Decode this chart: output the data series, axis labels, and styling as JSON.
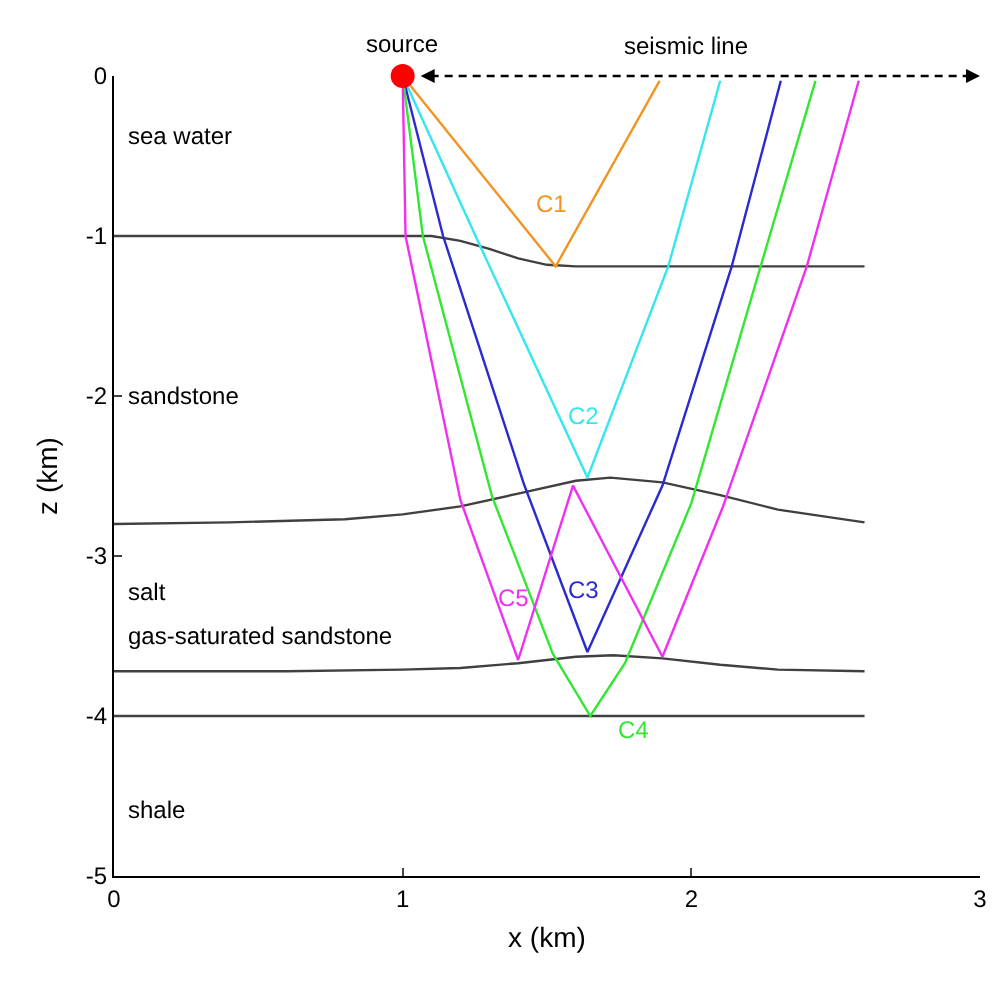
{
  "chart_data": {
    "type": "line",
    "xlabel": "x (km)",
    "ylabel": "z (km)",
    "xlim": [
      0,
      3
    ],
    "xticks": [
      0,
      1,
      2,
      3
    ],
    "ylim": [
      -5,
      0
    ],
    "yticks": [
      0,
      -1,
      -2,
      -3,
      -4,
      -5
    ],
    "grid": false,
    "legend": false,
    "marker": "none",
    "line_style": "solid",
    "series": [
      {
        "color": "#404040",
        "x": [
          0,
          1.0,
          1.1,
          1.2,
          1.3,
          1.4,
          1.5,
          1.6,
          2.6
        ],
        "values": [
          -1.0,
          -1.0,
          -1.0,
          -1.03,
          -1.08,
          -1.14,
          -1.18,
          -1.19,
          -1.19
        ]
      },
      {
        "color": "#404040",
        "x": [
          0,
          0.4,
          0.8,
          1.0,
          1.2,
          1.4,
          1.6,
          1.72,
          1.9,
          2.1,
          2.3,
          2.6
        ],
        "values": [
          -2.8,
          -2.79,
          -2.77,
          -2.74,
          -2.69,
          -2.61,
          -2.53,
          -2.51,
          -2.54,
          -2.62,
          -2.71,
          -2.79
        ]
      },
      {
        "color": "#404040",
        "x": [
          0,
          0.6,
          1.0,
          1.2,
          1.4,
          1.6,
          1.73,
          1.9,
          2.1,
          2.3,
          2.6
        ],
        "values": [
          -3.72,
          -3.72,
          -3.71,
          -3.7,
          -3.67,
          -3.63,
          -3.62,
          -3.64,
          -3.68,
          -3.71,
          -3.72
        ]
      },
      {
        "color": "#404040",
        "x": [
          0,
          2.6
        ],
        "values": [
          -4.0,
          -4.0
        ]
      },
      {
        "name": "C1",
        "color": "#f39422",
        "x": [
          1,
          1.53,
          1.89
        ],
        "values": [
          0,
          -1.19,
          -0.03
        ]
      },
      {
        "name": "C2",
        "color": "#33e6f0",
        "x": [
          1,
          1.26,
          1.64,
          1.92,
          2.1
        ],
        "values": [
          0,
          -1.03,
          -2.51,
          -1.19,
          -0.03
        ]
      },
      {
        "name": "C3",
        "color": "#2a2ad0",
        "x": [
          1,
          1.14,
          1.42,
          1.64,
          1.9,
          2.14,
          2.31
        ],
        "values": [
          0,
          -1.0,
          -2.55,
          -3.6,
          -2.56,
          -1.19,
          -0.03
        ]
      },
      {
        "name": "C4",
        "color": "#33e633",
        "x": [
          1,
          1.07,
          1.31,
          1.52,
          1.65,
          1.77,
          2.0,
          2.24,
          2.43
        ],
        "values": [
          0,
          -1.0,
          -2.63,
          -3.61,
          -4.0,
          -3.67,
          -2.67,
          -1.19,
          -0.03
        ]
      },
      {
        "name": "C5",
        "color": "#f030f0",
        "x": [
          1,
          1.01,
          1.2,
          1.4,
          1.59,
          1.9,
          2.11,
          2.4,
          2.58
        ],
        "values": [
          0,
          -1.0,
          -2.65,
          -3.65,
          -2.56,
          -3.63,
          -2.69,
          -1.19,
          -0.03
        ]
      },
      {
        "type": "scatter",
        "marker": "circle",
        "color": "#ff0000",
        "x": [
          1
        ],
        "values": [
          0
        ]
      }
    ],
    "annotations": [
      {
        "text": "source",
        "x": 1,
        "y": 0
      },
      "seismic line",
      "sea water",
      "sandstone",
      "salt",
      "gas-saturated sandstone",
      "shale"
    ]
  }
}
